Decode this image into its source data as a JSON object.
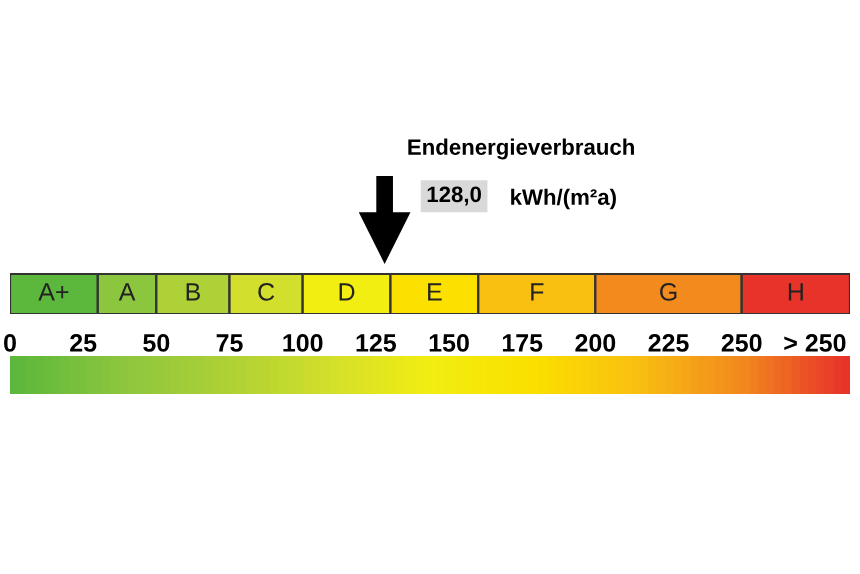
{
  "chart_data": {
    "type": "bar",
    "orientation": "horizontal",
    "stacked": true,
    "categories": [
      null
    ],
    "series": [
      {
        "name": "A+",
        "color": "#5cb83c",
        "values": [
          30
        ]
      },
      {
        "name": "A",
        "color": "#8cc63f",
        "values": [
          20
        ]
      },
      {
        "name": "B",
        "color": "#add136",
        "values": [
          25
        ]
      },
      {
        "name": "C",
        "color": "#d2df2c",
        "values": [
          25
        ]
      },
      {
        "name": "D",
        "color": "#f3ee12",
        "values": [
          30
        ]
      },
      {
        "name": "E",
        "color": "#fbe000",
        "values": [
          30
        ]
      },
      {
        "name": "F",
        "color": "#f9c012",
        "values": [
          40
        ]
      },
      {
        "name": "G",
        "color": "#f28a1e",
        "values": [
          50
        ]
      },
      {
        "name": "H",
        "color": "#e8332a",
        "values": [
          37
        ]
      }
    ],
    "xlim": [
      0,
      287
    ],
    "xticks": [
      0,
      25,
      50,
      75,
      100,
      125,
      150,
      175,
      200,
      225,
      250,
      {
        "value": 275,
        "label": "> 250"
      }
    ],
    "ref_lines": [
      {
        "axis": "x",
        "value": 128,
        "label": "Endenergieverbrauch"
      }
    ],
    "annotations": [
      "128,0",
      "kWh/(m²a)"
    ],
    "legend": false,
    "grid": false
  }
}
